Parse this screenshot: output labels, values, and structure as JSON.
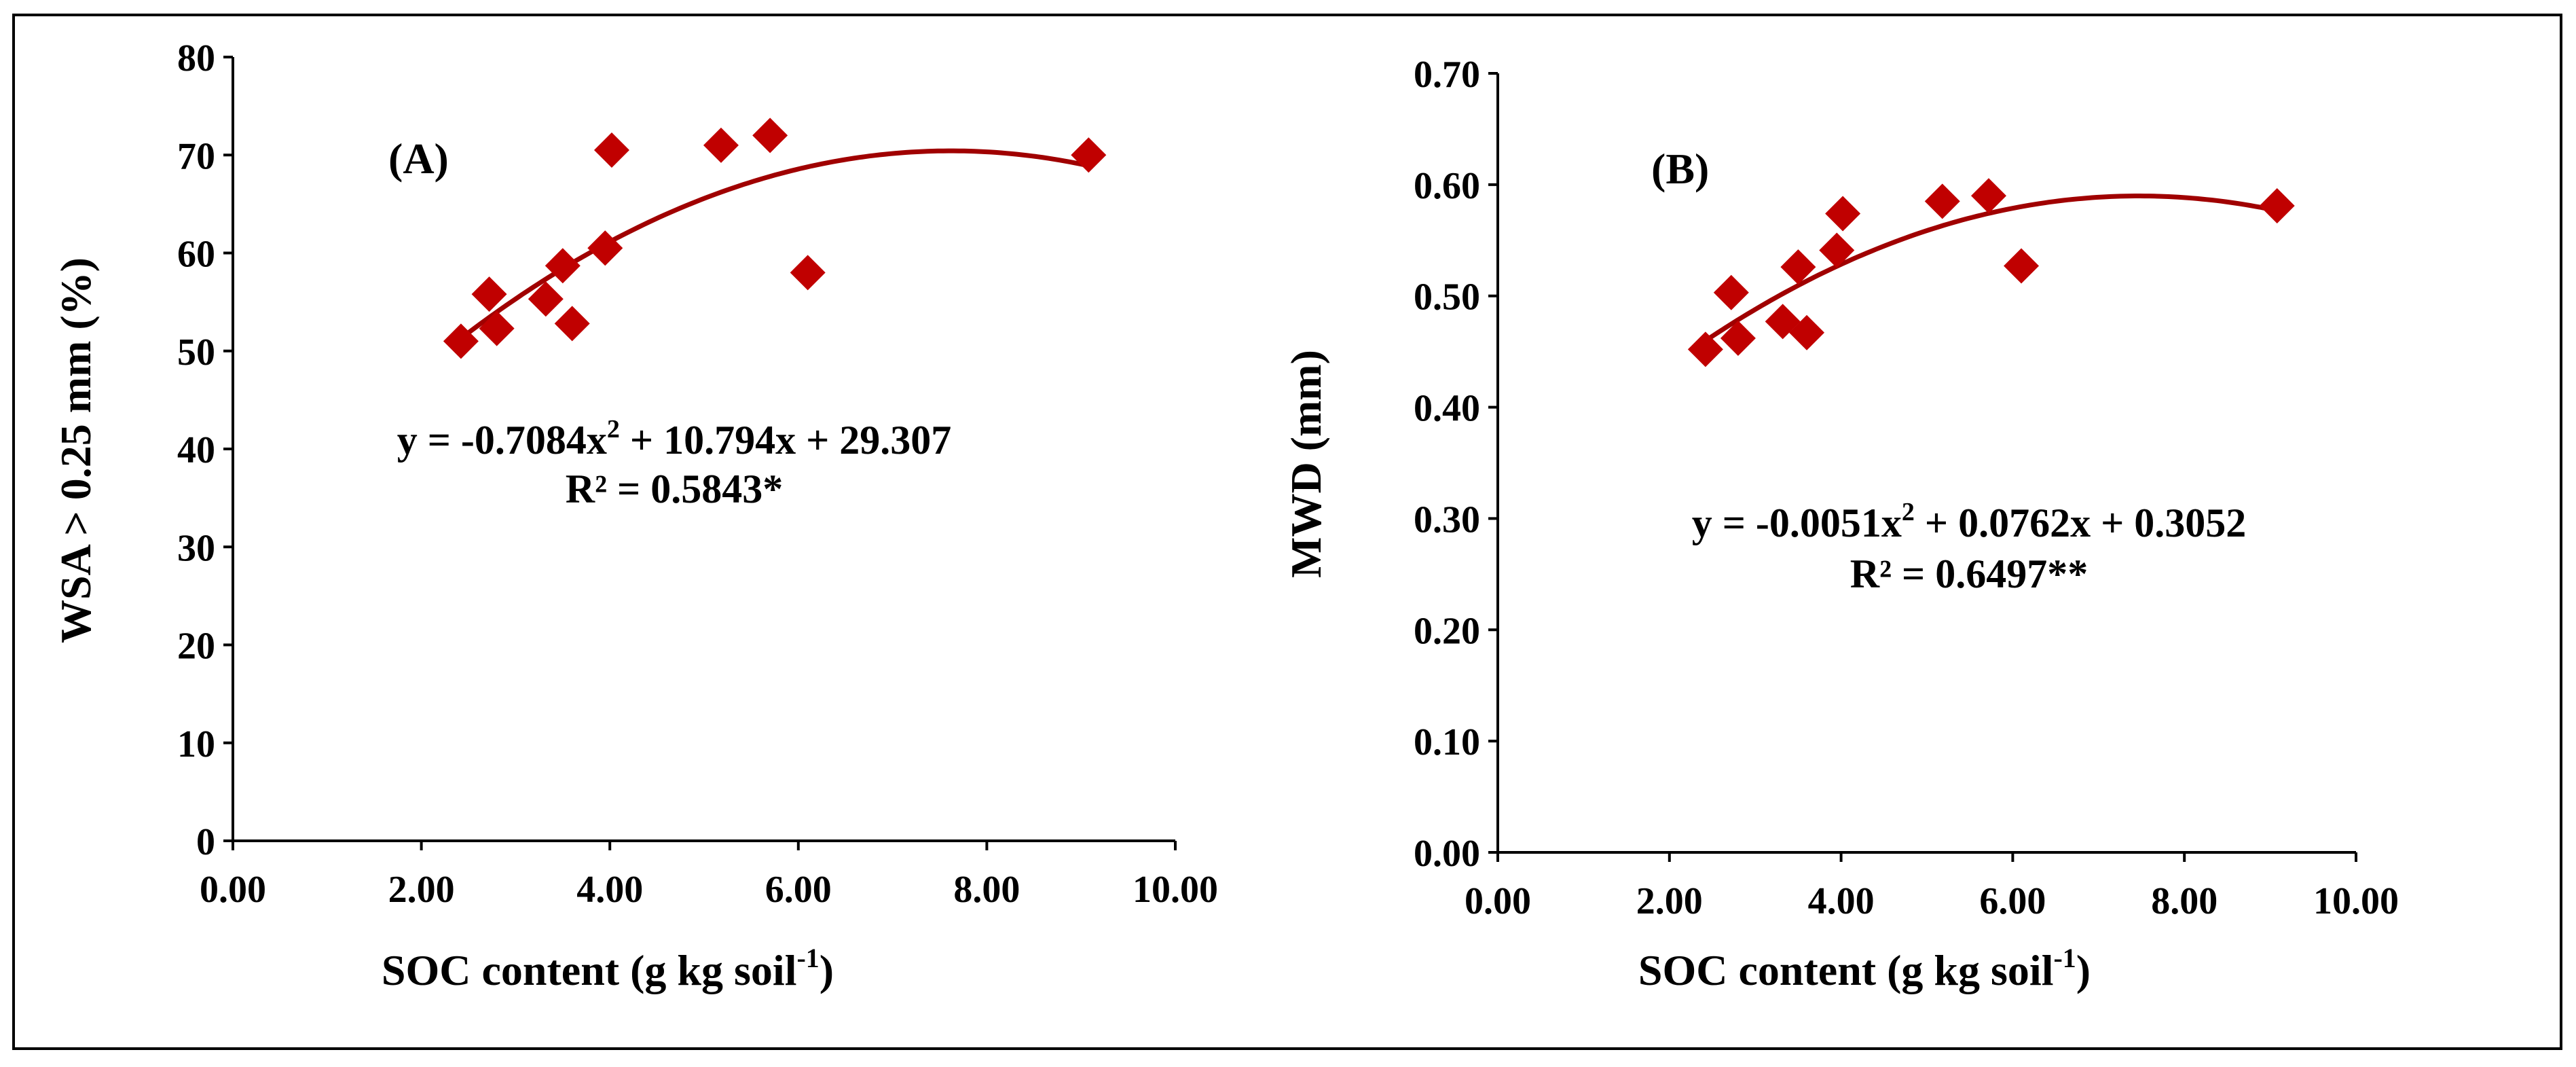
{
  "marker_color": "#c00000",
  "curve_color": "#a00000",
  "chart_data": [
    {
      "type": "scatter",
      "panel_label": "(A)",
      "ylabel": "WSA > 0.25 mm (%)",
      "xlabel_main": "SOC content (g kg soil",
      "xlabel_sup": "-1",
      "xlabel_close": ")",
      "xlim": [
        0,
        10
      ],
      "ylim": [
        0,
        80
      ],
      "xticks": [
        "0.00",
        "2.00",
        "4.00",
        "6.00",
        "8.00",
        "10.00"
      ],
      "yticks": [
        "0",
        "10",
        "20",
        "30",
        "40",
        "50",
        "60",
        "70",
        "80"
      ],
      "eq_pre": "y = -0.7084x",
      "eq_sup": "2",
      "eq_post": " + 10.794x + 29.307",
      "r2": "R² = 0.5843*",
      "fit": {
        "degree": 2,
        "coef": [
          -0.7084,
          10.794,
          29.307
        ],
        "x_range": [
          2.4,
          9.1
        ]
      },
      "points": [
        {
          "x": 2.42,
          "y": 51.0
        },
        {
          "x": 2.72,
          "y": 55.8
        },
        {
          "x": 2.8,
          "y": 52.3
        },
        {
          "x": 3.32,
          "y": 55.3
        },
        {
          "x": 3.5,
          "y": 58.7
        },
        {
          "x": 3.6,
          "y": 52.8
        },
        {
          "x": 3.95,
          "y": 60.5
        },
        {
          "x": 4.02,
          "y": 70.5
        },
        {
          "x": 5.18,
          "y": 71.0
        },
        {
          "x": 5.7,
          "y": 72.0
        },
        {
          "x": 6.1,
          "y": 58.0
        },
        {
          "x": 9.08,
          "y": 70.0
        }
      ]
    },
    {
      "type": "scatter",
      "panel_label": "(B)",
      "ylabel": "MWD (mm)",
      "xlabel_main": "SOC content (g kg soil",
      "xlabel_sup": "-1",
      "xlabel_close": ")",
      "xlim": [
        0,
        10
      ],
      "ylim": [
        0,
        0.7
      ],
      "xticks": [
        "0.00",
        "2.00",
        "4.00",
        "6.00",
        "8.00",
        "10.00"
      ],
      "yticks": [
        "0.00",
        "0.10",
        "0.20",
        "0.30",
        "0.40",
        "0.50",
        "0.60",
        "0.70"
      ],
      "eq_pre": "y = -0.0051x",
      "eq_sup": "2",
      "eq_post": " + 0.0762x + 0.3052",
      "r2": "R² = 0.6497**",
      "fit": {
        "degree": 2,
        "coef": [
          -0.0051,
          0.0762,
          0.3052
        ],
        "x_range": [
          2.4,
          9.1
        ]
      },
      "points": [
        {
          "x": 2.42,
          "y": 0.452
        },
        {
          "x": 2.72,
          "y": 0.503
        },
        {
          "x": 2.8,
          "y": 0.462
        },
        {
          "x": 3.32,
          "y": 0.477
        },
        {
          "x": 3.5,
          "y": 0.526
        },
        {
          "x": 3.6,
          "y": 0.467
        },
        {
          "x": 3.95,
          "y": 0.541
        },
        {
          "x": 4.02,
          "y": 0.574
        },
        {
          "x": 5.18,
          "y": 0.585
        },
        {
          "x": 5.72,
          "y": 0.59
        },
        {
          "x": 6.1,
          "y": 0.527
        },
        {
          "x": 9.08,
          "y": 0.581
        }
      ]
    }
  ]
}
